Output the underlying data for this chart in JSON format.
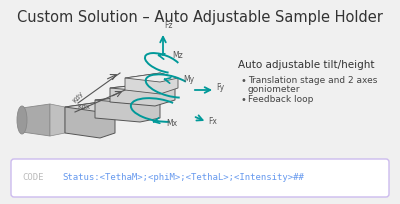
{
  "title": "Custom Solution – Auto Adjustable Sample Holder",
  "title_fontsize": 10.5,
  "bg_color": "#f0f0f0",
  "diagram_bg": "#ffffff",
  "right_header": "Auto adjustable tilt/height",
  "bullet1_line1": "Translation stage and 2 axes",
  "bullet1_line2": "goniometer",
  "bullet2": "Feedback loop",
  "code_label": "CODE",
  "code_text": "Status:<TethaM>;<phiM>;<TethaL>;<Intensity>##",
  "code_label_color": "#bbbbbb",
  "code_text_color": "#6699ee",
  "code_box_border": "#ccbbee",
  "code_box_bg": "#ffffff",
  "teal": "#009999",
  "dark_gray": "#555555",
  "mid_gray": "#888888",
  "light_gray": "#cccccc",
  "lighter_gray": "#dddddd",
  "text_color": "#444444",
  "label_color": "#555555"
}
